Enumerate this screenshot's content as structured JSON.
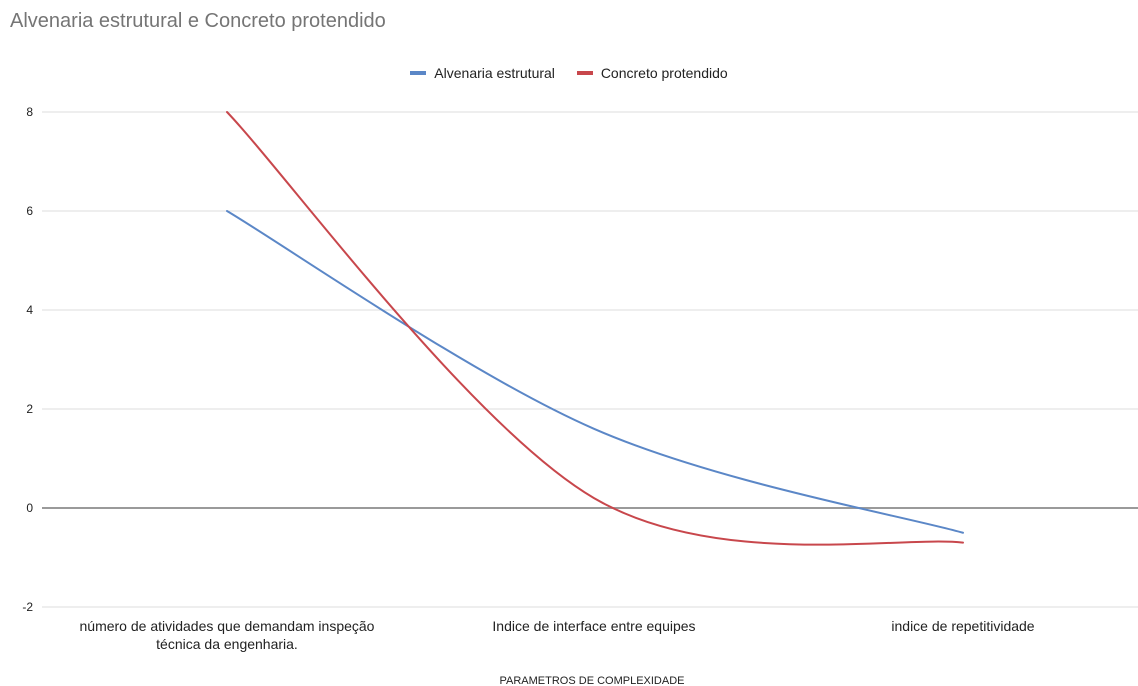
{
  "chart_data": {
    "type": "line",
    "title": "Alvenaria estrutural e Concreto protendido",
    "xlabel": "PARAMETROS DE COMPLEXIDADE",
    "ylabel": "",
    "categories": [
      [
        "número de atividades que demandam inspeção",
        "técnica da engenharia."
      ],
      [
        "Indice de interface entre equipes"
      ],
      [
        "indice de repetitividade"
      ]
    ],
    "ylim": [
      -2,
      8
    ],
    "yticks": [
      -2,
      0,
      2,
      4,
      6,
      8
    ],
    "grid": true,
    "legend_position": "top",
    "series": [
      {
        "name": "Alvenaria estrutural",
        "color": "#5b87c7",
        "values": [
          6,
          1.6,
          -0.5
        ]
      },
      {
        "name": "Concreto protendido",
        "color": "#c8474c",
        "values": [
          8,
          0.2,
          -0.7
        ]
      }
    ]
  }
}
